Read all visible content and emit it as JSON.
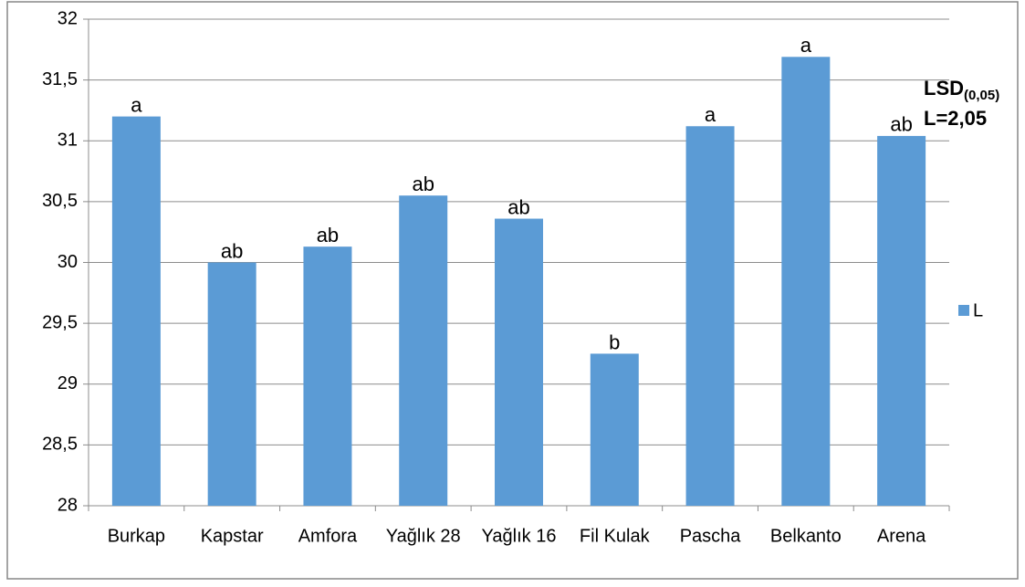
{
  "chart_data": {
    "type": "bar",
    "categories": [
      "Burkap",
      "Kapstar",
      "Amfora",
      "Yağlık 28",
      "Yağlık 16",
      "Fil Kulak",
      "Pascha",
      "Belkanto",
      "Arena"
    ],
    "series": [
      {
        "name": "L",
        "color": "#5b9bd5",
        "values": [
          31.2,
          30.0,
          30.13,
          30.55,
          30.36,
          29.25,
          31.12,
          31.69,
          31.04
        ]
      }
    ],
    "letters": [
      "a",
      "ab",
      "ab",
      "ab",
      "ab",
      "b",
      "a",
      "a",
      "ab"
    ],
    "ylim": [
      28,
      32
    ],
    "yticks": [
      28,
      {
        "value": 28.5,
        "label": "28,5"
      },
      29,
      {
        "value": 29.5,
        "label": "29,5"
      },
      30,
      {
        "value": 30.5,
        "label": "30,5"
      },
      31,
      {
        "value": 31.5,
        "label": "31,5"
      },
      32
    ],
    "grid": true,
    "legend": "right",
    "annotation": {
      "main": "LSD",
      "subscript": "(0,05)",
      "line2": "L=2,05"
    }
  }
}
